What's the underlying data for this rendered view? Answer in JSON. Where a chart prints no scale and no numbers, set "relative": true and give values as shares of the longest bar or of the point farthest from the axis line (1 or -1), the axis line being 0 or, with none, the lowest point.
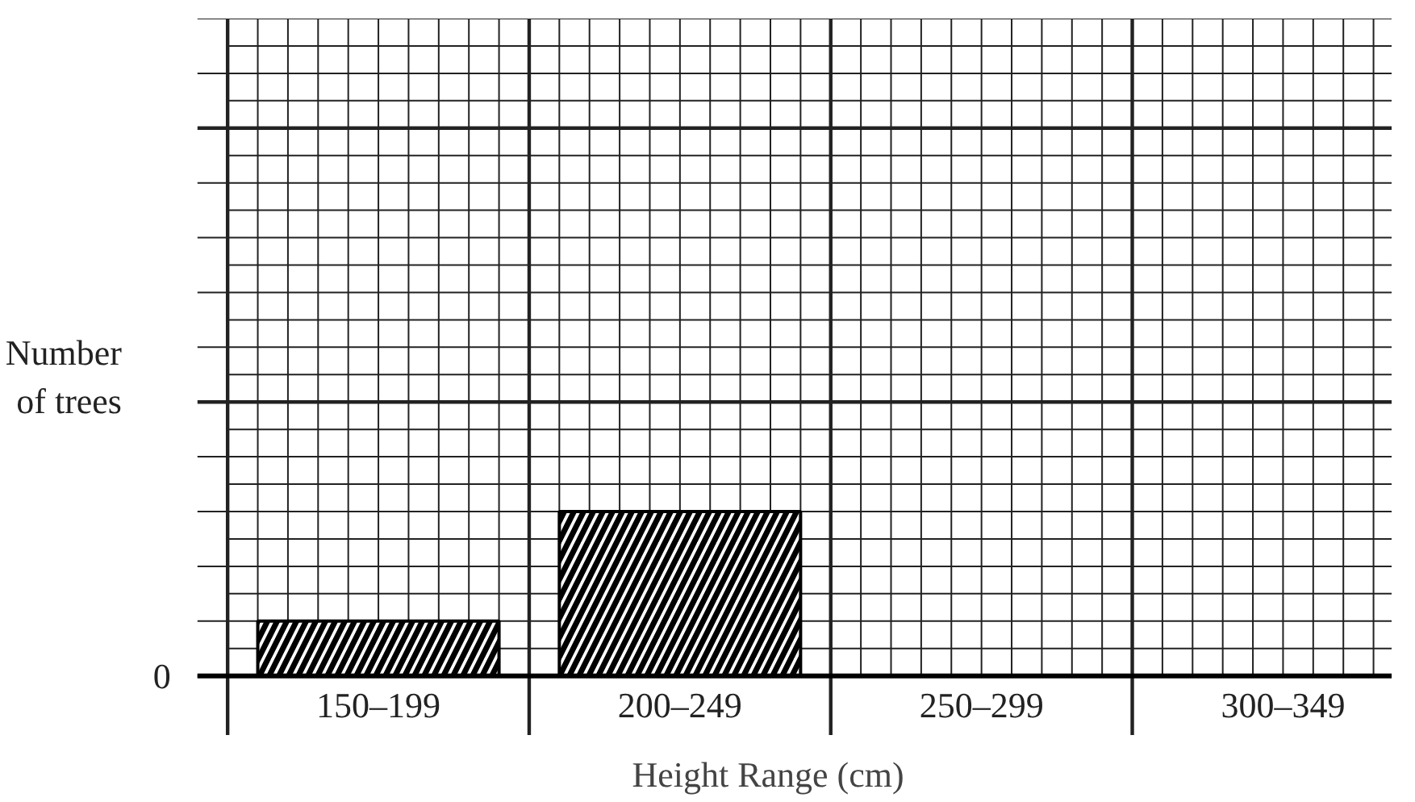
{
  "chart_data": {
    "type": "bar",
    "xlabel": "Height Range (cm)",
    "ylabel": "Number\nof trees",
    "categories": [
      "150–199",
      "200–249",
      "250–299",
      "300–349"
    ],
    "values": [
      0.333,
      1,
      null,
      null
    ],
    "color": "#000000",
    "relative": true,
    "grid": true,
    "annotations": [
      "0"
    ]
  }
}
